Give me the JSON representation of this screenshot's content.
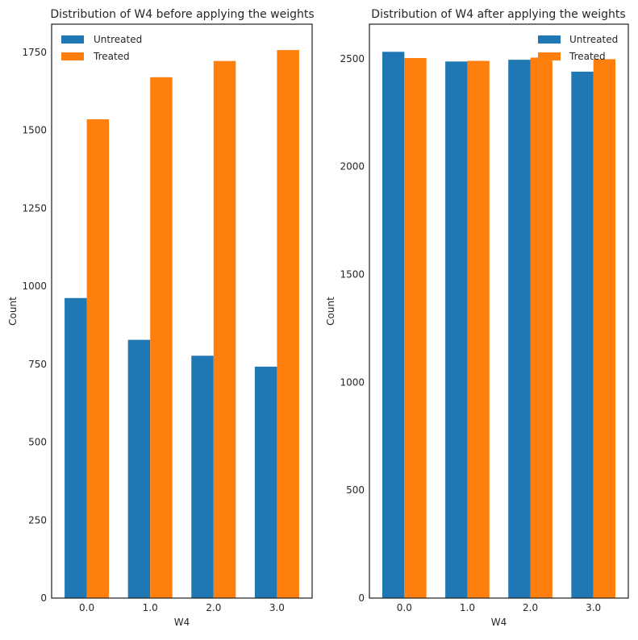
{
  "chart_data": [
    {
      "type": "bar",
      "title": "Distribution of W4 before applying the weights",
      "xlabel": "W4",
      "ylabel": "Count",
      "categories": [
        "0.0",
        "1.0",
        "2.0",
        "3.0"
      ],
      "ylim": [
        0,
        1840
      ],
      "yticks": [
        0,
        250,
        500,
        750,
        1000,
        1250,
        1500,
        1750
      ],
      "legend_position": "top-left",
      "series": [
        {
          "name": "Untreated",
          "color": "#1f77b4",
          "values": [
            962,
            828,
            777,
            742
          ]
        },
        {
          "name": "Treated",
          "color": "#ff7f0e",
          "values": [
            1535,
            1670,
            1722,
            1757
          ]
        }
      ]
    },
    {
      "type": "bar",
      "title": "Distribution of W4 after applying the weights",
      "xlabel": "W4",
      "ylabel": "Count",
      "categories": [
        "0.0",
        "1.0",
        "2.0",
        "3.0"
      ],
      "ylim": [
        0,
        2660
      ],
      "yticks": [
        0,
        500,
        1000,
        1500,
        2000,
        2500
      ],
      "legend_position": "top-right",
      "series": [
        {
          "name": "Untreated",
          "color": "#1f77b4",
          "values": [
            2532,
            2487,
            2495,
            2440
          ]
        },
        {
          "name": "Treated",
          "color": "#ff7f0e",
          "values": [
            2503,
            2490,
            2505,
            2498
          ]
        }
      ]
    }
  ]
}
